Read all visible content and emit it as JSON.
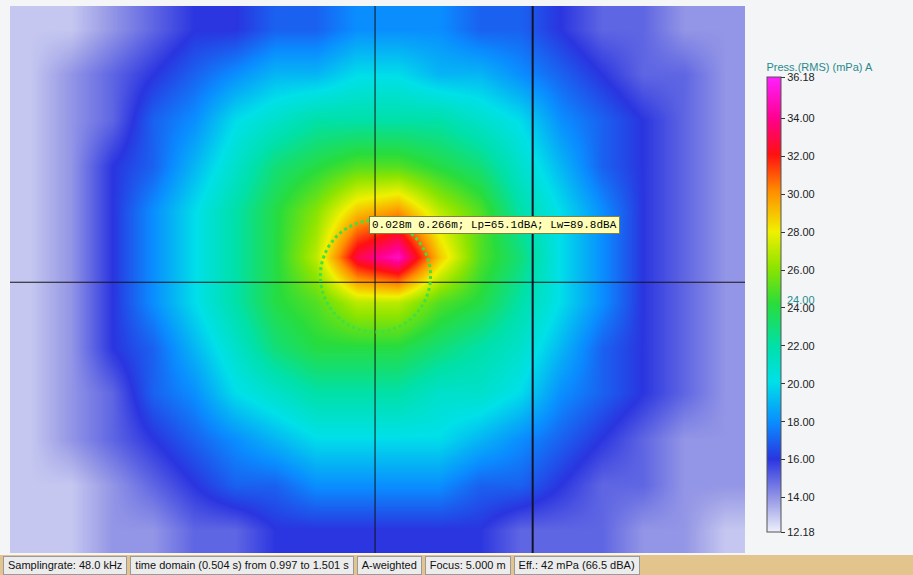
{
  "chart_data": {
    "type": "heatmap",
    "tick_labels": false,
    "cells": [
      [
        13,
        13,
        14,
        15,
        16,
        16,
        17,
        17,
        18,
        18,
        18,
        17,
        17,
        16,
        15,
        15,
        14,
        14
      ],
      [
        13,
        14,
        15,
        16,
        17,
        18,
        19,
        19,
        20,
        20,
        19,
        19,
        18,
        17,
        16,
        15,
        15,
        14
      ],
      [
        13,
        14,
        15,
        17,
        18,
        20,
        21,
        22,
        22,
        22,
        22,
        21,
        20,
        18,
        17,
        16,
        15,
        14
      ],
      [
        13,
        14,
        16,
        17,
        19,
        21,
        23,
        24,
        25,
        25,
        24,
        23,
        21,
        19,
        17,
        16,
        15,
        14
      ],
      [
        13,
        14,
        16,
        18,
        20,
        22,
        24,
        26,
        29,
        30,
        27,
        25,
        22,
        20,
        18,
        16,
        15,
        14
      ],
      [
        13,
        14,
        16,
        18,
        20,
        22,
        24,
        27,
        33,
        35,
        29,
        25,
        23,
        20,
        18,
        16,
        15,
        14
      ],
      [
        13,
        14,
        16,
        18,
        20,
        22,
        24,
        25,
        27,
        27,
        25,
        24,
        22,
        20,
        18,
        16,
        15,
        14
      ],
      [
        13,
        14,
        16,
        17,
        19,
        21,
        23,
        24,
        24,
        24,
        23,
        22,
        21,
        19,
        17,
        16,
        15,
        14
      ],
      [
        13,
        14,
        15,
        17,
        18,
        20,
        21,
        22,
        22,
        22,
        21,
        21,
        20,
        18,
        17,
        16,
        15,
        14
      ],
      [
        13,
        14,
        15,
        16,
        17,
        18,
        19,
        20,
        20,
        20,
        20,
        19,
        18,
        17,
        16,
        15,
        14,
        14
      ],
      [
        13,
        13,
        14,
        15,
        16,
        17,
        17,
        18,
        18,
        18,
        18,
        17,
        17,
        16,
        15,
        15,
        14,
        14
      ],
      [
        13,
        13,
        14,
        14,
        15,
        15,
        16,
        16,
        16,
        16,
        16,
        16,
        15,
        15,
        15,
        14,
        14,
        13
      ]
    ],
    "colorbar": {
      "title": "Press.(RMS) (mPa) A",
      "range": [
        12.18,
        36.18
      ],
      "ticks": [
        12.18,
        {
          "value": 14,
          "label": "14.00"
        },
        {
          "value": 16,
          "label": "16.00"
        },
        {
          "value": 18,
          "label": "18.00"
        },
        {
          "value": 20,
          "label": "20.00"
        },
        {
          "value": 22,
          "label": "22.00"
        },
        {
          "value": 24,
          "label": "24.00"
        },
        {
          "value": 26,
          "label": "26.00"
        },
        {
          "value": 28,
          "label": "28.00"
        },
        {
          "value": 30,
          "label": "30.00"
        },
        {
          "value": 32,
          "label": "32.00"
        },
        {
          "value": 34,
          "label": "34.00"
        },
        36.18
      ],
      "marker": {
        "value": 24,
        "label": "24.00"
      }
    },
    "annotations": [
      {
        "text": "0.028m 0.266m; Lp=65.1dBA; Lw=89.8dBA"
      }
    ]
  },
  "status_bar": [
    "Samplingrate: 48.0 kHz",
    "time domain (0.504 s) from 0.997 to 1.501 s",
    "A-weighted",
    "Focus: 5.000 m",
    "Eff.: 42 mPa (66.5 dBA)"
  ]
}
